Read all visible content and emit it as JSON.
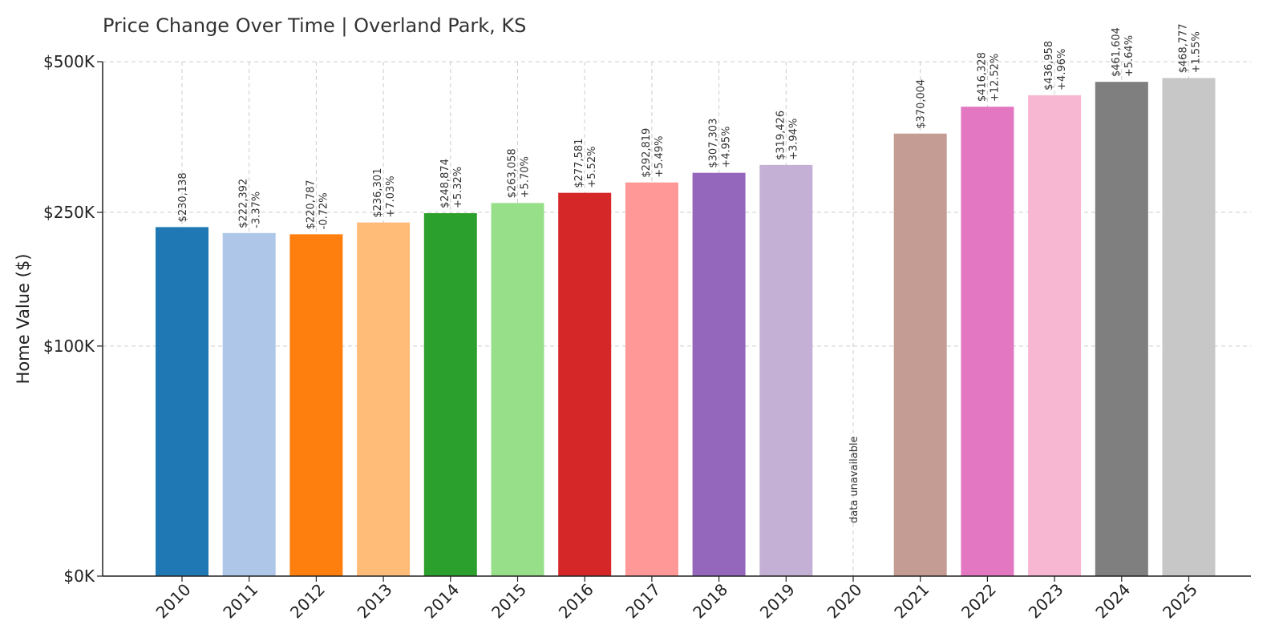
{
  "chart_data": {
    "type": "bar",
    "title": "Price Change Over Time | Overland Park, KS",
    "xlabel": "",
    "ylabel": "Home Value ($)",
    "y_scale": "sqrt",
    "ylim": [
      0,
      500000
    ],
    "yticks": [
      {
        "value": 0,
        "label": "$0K"
      },
      {
        "value": 100000,
        "label": "$100K"
      },
      {
        "value": 250000,
        "label": "$250K"
      },
      {
        "value": 500000,
        "label": "$500K"
      }
    ],
    "grid": true,
    "categories": [
      "2010",
      "2011",
      "2012",
      "2013",
      "2014",
      "2015",
      "2016",
      "2017",
      "2018",
      "2019",
      "2020",
      "2021",
      "2022",
      "2023",
      "2024",
      "2025"
    ],
    "values": [
      230138,
      222392,
      220787,
      236301,
      248874,
      263058,
      277581,
      292819,
      307303,
      319426,
      null,
      370004,
      416328,
      436958,
      461604,
      468777
    ],
    "value_labels": [
      "$230,138",
      "$222,392",
      "$220,787",
      "$236,301",
      "$248,874",
      "$263,058",
      "$277,581",
      "$292,819",
      "$307,303",
      "$319,426",
      "",
      "$370,004",
      "$416,328",
      "$436,958",
      "$461,604",
      "$468,777"
    ],
    "change_labels": [
      "",
      "-3.37%",
      "-0.72%",
      "+7.03%",
      "+5.32%",
      "+5.70%",
      "+5.52%",
      "+5.49%",
      "+4.95%",
      "+3.94%",
      "",
      "",
      "+12.52%",
      "+4.96%",
      "+5.64%",
      "+1.55%"
    ],
    "missing_label": "data unavailable",
    "colors": [
      "#1f77b4",
      "#aec7e8",
      "#ff7f0e",
      "#ffbb78",
      "#2ca02c",
      "#98df8a",
      "#d62728",
      "#ff9896",
      "#9467bd",
      "#c5b0d5",
      "#8c564b",
      "#c49c94",
      "#e377c2",
      "#f7b6d2",
      "#7f7f7f",
      "#c7c7c7"
    ]
  }
}
